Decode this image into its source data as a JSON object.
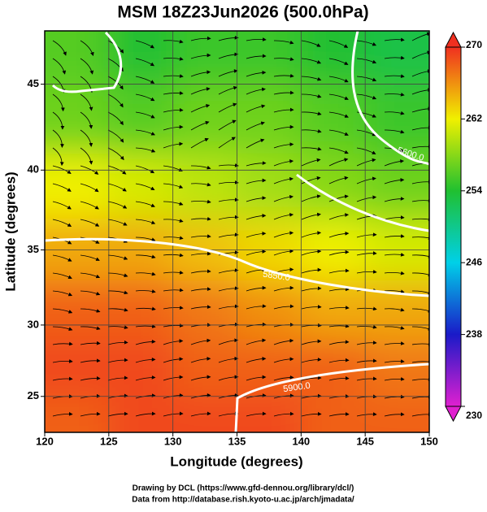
{
  "chart_data": {
    "type": "heatmap",
    "title": "MSM 18Z23Jun2026 (500.0hPa)",
    "xlabel": "Longitude (degrees)",
    "ylabel": "Latitude  (degrees)",
    "projection": "mercator",
    "xlim": [
      120,
      150
    ],
    "xticks": [
      120,
      125,
      130,
      135,
      140,
      145,
      150
    ],
    "ylim": [
      22.4,
      47.9
    ],
    "yticks": [
      25,
      30,
      35,
      40,
      45
    ],
    "grid": true,
    "lon": [
      122.5,
      127.5,
      132.5,
      137.5,
      142.5,
      147.5
    ],
    "lat": [
      47,
      43,
      39,
      35,
      31,
      27,
      23
    ],
    "values": [
      [
        256,
        254,
        255,
        255,
        254,
        253
      ],
      [
        257,
        256,
        257,
        257,
        256,
        255
      ],
      [
        262,
        261,
        260,
        259,
        258,
        257
      ],
      [
        265,
        265,
        264,
        263,
        262,
        261
      ],
      [
        268,
        268,
        267,
        266,
        265,
        265
      ],
      [
        269,
        269,
        268,
        268,
        268,
        267
      ],
      [
        268,
        269,
        269,
        269,
        268,
        268
      ]
    ],
    "colorbar": {
      "range": [
        230,
        270
      ],
      "ticks": [
        230,
        238,
        246,
        254,
        262,
        270
      ],
      "colors": [
        "#e020d0",
        "#1a1ac8",
        "#00d0e8",
        "#20c030",
        "#f0f000",
        "#f03020"
      ]
    },
    "contours": [
      {
        "label": "5600.0"
      },
      {
        "label": "5850.0"
      },
      {
        "label": "5900.0"
      }
    ],
    "footer": [
      "Drawing by DCL (https://www.gfd-dennou.org/library/dcl/)",
      "Data from http://database.rish.kyoto-u.ac.jp/arch/jmadata/"
    ]
  }
}
